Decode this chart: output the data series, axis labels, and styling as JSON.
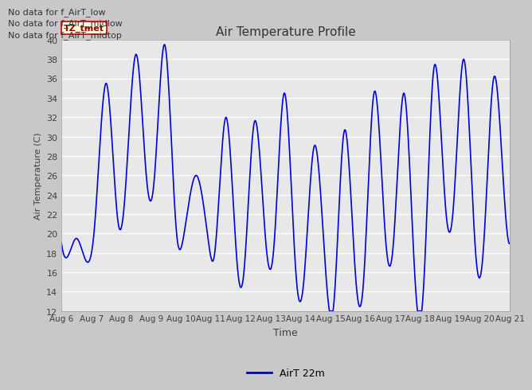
{
  "title": "Air Temperature Profile",
  "xlabel": "Time",
  "ylabel": "Air Temperature (C)",
  "legend_label": "AirT 22m",
  "line_color": "#0000dd",
  "ylim": [
    12,
    40
  ],
  "yticks": [
    12,
    14,
    16,
    18,
    20,
    22,
    24,
    26,
    28,
    30,
    32,
    34,
    36,
    38,
    40
  ],
  "text_annotations": [
    "No data for f_AirT_low",
    "No data for f_AirT_midlow",
    "No data for f_AirT_midtop"
  ],
  "tz_label": "TZ_tmet",
  "x_tick_labels": [
    "Aug 6",
    "Aug 7",
    "Aug 8",
    "Aug 9",
    "Aug 10",
    "Aug 11",
    "Aug 12",
    "Aug 13",
    "Aug 14",
    "Aug 15",
    "Aug 16",
    "Aug 17",
    "Aug 18",
    "Aug 19",
    "Aug 20",
    "Aug 21"
  ]
}
